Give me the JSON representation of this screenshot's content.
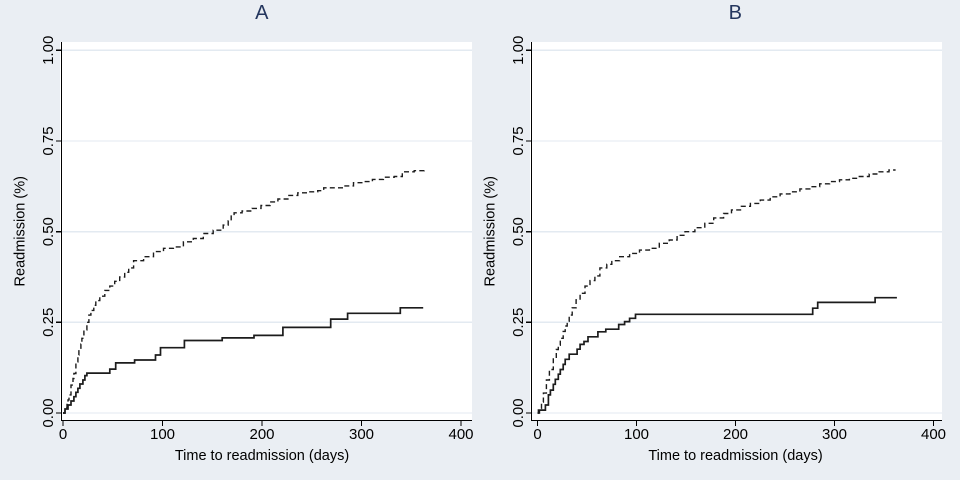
{
  "figure": {
    "background_color": "#eaeef3",
    "title_color": "#24365e",
    "grid_color": "#e3eaf1",
    "curve_color": "#1c1c1c",
    "plot_background": "#ffffff"
  },
  "chart_data": [
    {
      "type": "line",
      "title": "A",
      "xlabel": "Time to readmission (days)",
      "ylabel": "Readmission (%)",
      "xlim": [
        0,
        400
      ],
      "ylim": [
        0,
        1
      ],
      "xticks": [
        0,
        100,
        200,
        300,
        400
      ],
      "xtick_labels": [
        "0",
        "100",
        "200",
        "300",
        "400"
      ],
      "ytick_values": [
        0,
        0.25,
        0.5,
        0.75,
        1
      ],
      "ytick_labels": [
        "0.00",
        "0.25",
        "0.50",
        "0.75",
        "1.00"
      ],
      "grid": true,
      "legend": "none",
      "step_interpolation": true,
      "series": [
        {
          "name": "dashed-curve",
          "style": "dashed",
          "points": [
            [
              0,
              0
            ],
            [
              2,
              0.014
            ],
            [
              4,
              0.028
            ],
            [
              5,
              0.036
            ],
            [
              6,
              0.05
            ],
            [
              8,
              0.077
            ],
            [
              10,
              0.095
            ],
            [
              11,
              0.109
            ],
            [
              13,
              0.141
            ],
            [
              15,
              0.16
            ],
            [
              16,
              0.174
            ],
            [
              18,
              0.19
            ],
            [
              19,
              0.206
            ],
            [
              21,
              0.229
            ],
            [
              24,
              0.25
            ],
            [
              26,
              0.27
            ],
            [
              28,
              0.283
            ],
            [
              31,
              0.297
            ],
            [
              33,
              0.31
            ],
            [
              37,
              0.322
            ],
            [
              42,
              0.338
            ],
            [
              47,
              0.35
            ],
            [
              52,
              0.363
            ],
            [
              57,
              0.375
            ],
            [
              62,
              0.388
            ],
            [
              66,
              0.4
            ],
            [
              71,
              0.42
            ],
            [
              81,
              0.431
            ],
            [
              91,
              0.445
            ],
            [
              101,
              0.454
            ],
            [
              111,
              0.458
            ],
            [
              121,
              0.472
            ],
            [
              131,
              0.481
            ],
            [
              141,
              0.495
            ],
            [
              151,
              0.504
            ],
            [
              161,
              0.518
            ],
            [
              166,
              0.53
            ],
            [
              169,
              0.545
            ],
            [
              172,
              0.552
            ],
            [
              180,
              0.557
            ],
            [
              190,
              0.564
            ],
            [
              199,
              0.572
            ],
            [
              208,
              0.582
            ],
            [
              216,
              0.59
            ],
            [
              226,
              0.6
            ],
            [
              236,
              0.607
            ],
            [
              246,
              0.61
            ],
            [
              256,
              0.613
            ],
            [
              262,
              0.621
            ],
            [
              282,
              0.626
            ],
            [
              292,
              0.635
            ],
            [
              302,
              0.638
            ],
            [
              311,
              0.644
            ],
            [
              322,
              0.65
            ],
            [
              333,
              0.652
            ],
            [
              341,
              0.665
            ],
            [
              353,
              0.668
            ],
            [
              363,
              0.672
            ]
          ]
        },
        {
          "name": "solid-curve",
          "style": "solid",
          "points": [
            [
              0,
              0
            ],
            [
              2,
              0.011
            ],
            [
              5,
              0.022
            ],
            [
              8,
              0.033
            ],
            [
              11,
              0.045
            ],
            [
              13,
              0.057
            ],
            [
              15,
              0.068
            ],
            [
              17,
              0.08
            ],
            [
              20,
              0.091
            ],
            [
              22,
              0.103
            ],
            [
              24,
              0.11
            ],
            [
              47,
              0.121
            ],
            [
              53,
              0.138
            ],
            [
              72,
              0.146
            ],
            [
              93,
              0.16
            ],
            [
              98,
              0.18
            ],
            [
              122,
              0.2
            ],
            [
              160,
              0.207
            ],
            [
              192,
              0.214
            ],
            [
              221,
              0.236
            ],
            [
              269,
              0.259
            ],
            [
              286,
              0.275
            ],
            [
              339,
              0.29
            ],
            [
              362,
              0.29
            ]
          ]
        }
      ]
    },
    {
      "type": "line",
      "title": "B",
      "xlabel": "Time to readmission (days)",
      "ylabel": "Readmission (%)",
      "xlim": [
        0,
        400
      ],
      "ylim": [
        0,
        1
      ],
      "xticks": [
        0,
        100,
        200,
        300,
        400
      ],
      "xtick_labels": [
        "0",
        "100",
        "200",
        "300",
        "400"
      ],
      "ytick_values": [
        0,
        0.25,
        0.5,
        0.75,
        1
      ],
      "ytick_labels": [
        "0.00",
        "0.25",
        "0.50",
        "0.75",
        "1.00"
      ],
      "grid": true,
      "legend": "none",
      "step_interpolation": true,
      "series": [
        {
          "name": "dashed-curve",
          "style": "dashed",
          "points": [
            [
              0,
              0
            ],
            [
              2,
              0.012
            ],
            [
              4,
              0.03
            ],
            [
              6,
              0.055
            ],
            [
              9,
              0.091
            ],
            [
              12,
              0.12
            ],
            [
              16,
              0.151
            ],
            [
              19,
              0.175
            ],
            [
              21,
              0.187
            ],
            [
              23,
              0.206
            ],
            [
              26,
              0.225
            ],
            [
              28,
              0.24
            ],
            [
              30,
              0.253
            ],
            [
              32,
              0.27
            ],
            [
              35,
              0.29
            ],
            [
              39,
              0.312
            ],
            [
              43,
              0.33
            ],
            [
              48,
              0.35
            ],
            [
              53,
              0.365
            ],
            [
              58,
              0.378
            ],
            [
              63,
              0.4
            ],
            [
              70,
              0.41
            ],
            [
              75,
              0.42
            ],
            [
              83,
              0.431
            ],
            [
              93,
              0.44
            ],
            [
              103,
              0.449
            ],
            [
              113,
              0.454
            ],
            [
              123,
              0.468
            ],
            [
              133,
              0.477
            ],
            [
              141,
              0.49
            ],
            [
              149,
              0.5
            ],
            [
              159,
              0.511
            ],
            [
              169,
              0.523
            ],
            [
              178,
              0.538
            ],
            [
              188,
              0.55
            ],
            [
              196,
              0.56
            ],
            [
              206,
              0.57
            ],
            [
              215,
              0.578
            ],
            [
              225,
              0.587
            ],
            [
              235,
              0.596
            ],
            [
              245,
              0.604
            ],
            [
              255,
              0.61
            ],
            [
              265,
              0.618
            ],
            [
              275,
              0.624
            ],
            [
              285,
              0.632
            ],
            [
              295,
              0.638
            ],
            [
              305,
              0.643
            ],
            [
              315,
              0.647
            ],
            [
              325,
              0.652
            ],
            [
              335,
              0.659
            ],
            [
              345,
              0.665
            ],
            [
              355,
              0.67
            ],
            [
              361,
              0.672
            ]
          ]
        },
        {
          "name": "solid-curve",
          "style": "solid",
          "points": [
            [
              0,
              0
            ],
            [
              1,
              0.008
            ],
            [
              8,
              0.022
            ],
            [
              11,
              0.05
            ],
            [
              13,
              0.063
            ],
            [
              16,
              0.079
            ],
            [
              18,
              0.093
            ],
            [
              21,
              0.107
            ],
            [
              23,
              0.12
            ],
            [
              26,
              0.134
            ],
            [
              28,
              0.148
            ],
            [
              32,
              0.162
            ],
            [
              40,
              0.176
            ],
            [
              43,
              0.189
            ],
            [
              47,
              0.197
            ],
            [
              51,
              0.21
            ],
            [
              61,
              0.224
            ],
            [
              69,
              0.231
            ],
            [
              82,
              0.244
            ],
            [
              88,
              0.252
            ],
            [
              93,
              0.261
            ],
            [
              99,
              0.272
            ],
            [
              278,
              0.289
            ],
            [
              283,
              0.305
            ],
            [
              341,
              0.318
            ],
            [
              363,
              0.318
            ]
          ]
        }
      ]
    }
  ]
}
